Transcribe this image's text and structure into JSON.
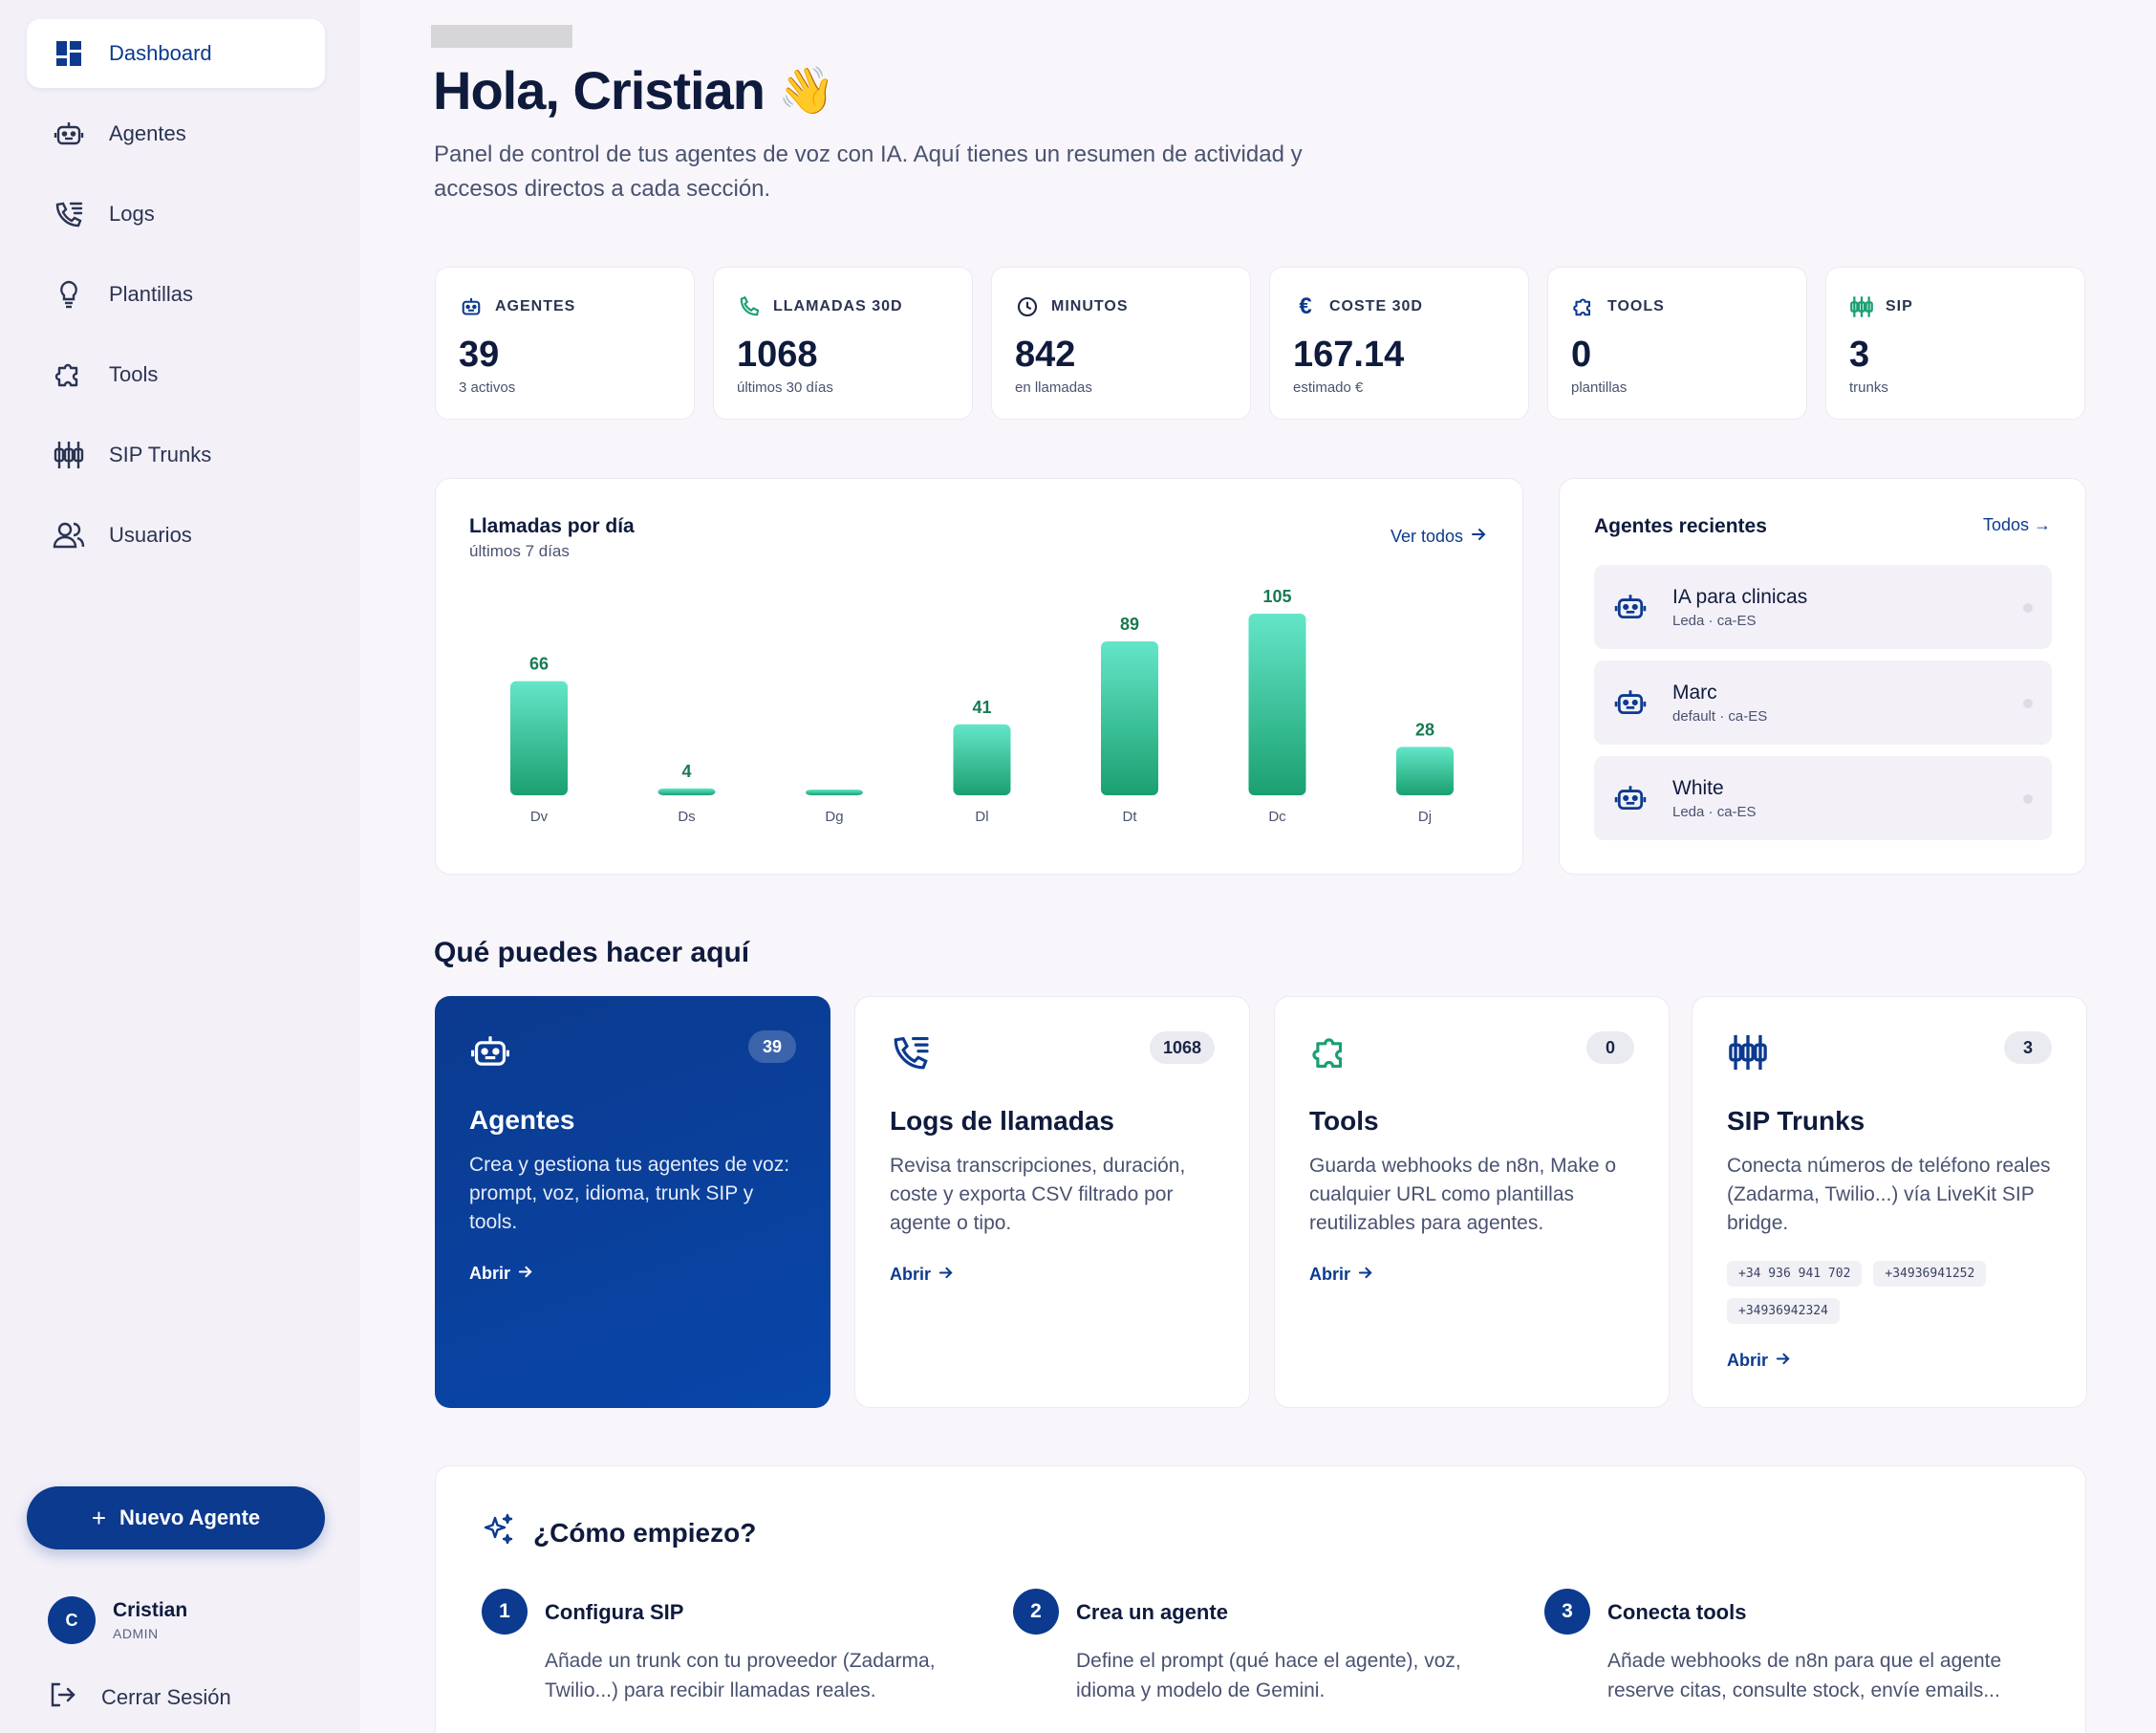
{
  "sidebar": {
    "items": [
      {
        "label": "Dashboard",
        "icon": "dashboard-icon",
        "active": true
      },
      {
        "label": "Agentes",
        "icon": "robot-icon"
      },
      {
        "label": "Logs",
        "icon": "phone-list-icon"
      },
      {
        "label": "Plantillas",
        "icon": "lightbulb-icon"
      },
      {
        "label": "Tools",
        "icon": "puzzle-icon"
      },
      {
        "label": "SIP Trunks",
        "icon": "sip-icon"
      },
      {
        "label": "Usuarios",
        "icon": "users-icon"
      }
    ],
    "new_agent_label": "Nuevo Agente",
    "new_agent_plus": "+",
    "user": {
      "initial": "C",
      "name": "Cristian",
      "role": "ADMIN"
    },
    "logout_label": "Cerrar Sesión"
  },
  "header": {
    "title": "Hola, Cristian",
    "wave": "👋",
    "subtitle": "Panel de control de tus agentes de voz con IA. Aquí tienes un resumen de actividad y accesos directos a cada sección."
  },
  "stats": [
    {
      "label": "AGENTES",
      "value": "39",
      "sub": "3 activos",
      "icon": "robot-icon"
    },
    {
      "label": "LLAMADAS 30D",
      "value": "1068",
      "sub": "últimos 30 días",
      "icon": "phone-icon"
    },
    {
      "label": "MINUTOS",
      "value": "842",
      "sub": "en llamadas",
      "icon": "clock-icon"
    },
    {
      "label": "COSTE 30D",
      "value": "167.14",
      "sub": "estimado €",
      "icon": "euro-icon"
    },
    {
      "label": "TOOLS",
      "value": "0",
      "sub": "plantillas",
      "icon": "puzzle-icon"
    },
    {
      "label": "SIP",
      "value": "3",
      "sub": "trunks",
      "icon": "sip-icon"
    }
  ],
  "chart": {
    "title": "Llamadas por día",
    "subtitle": "últimos 7 días",
    "link_label": "Ver todos"
  },
  "chart_data": {
    "type": "bar",
    "categories": [
      "Dv",
      "Ds",
      "Dg",
      "Dl",
      "Dt",
      "Dc",
      "Dj"
    ],
    "values": [
      66,
      4,
      0,
      41,
      89,
      105,
      28
    ],
    "data_labels": [
      "66",
      "4",
      "",
      "41",
      "89",
      "105",
      "28"
    ],
    "colors": {
      "top": "#63e6c8",
      "bottom": "#1aa070",
      "label": "#177a52"
    },
    "grid": false
  },
  "recent": {
    "title": "Agentes recientes",
    "link_label": "Todos →",
    "agents": [
      {
        "name": "IA para clinicas",
        "meta": "Leda · ca-ES"
      },
      {
        "name": "Marc",
        "meta": "default · ca-ES"
      },
      {
        "name": "White",
        "meta": "Leda · ca-ES"
      }
    ]
  },
  "section_title": "Qué puedes hacer aquí",
  "features": [
    {
      "title": "Agentes",
      "badge": "39",
      "desc": "Crea y gestiona tus agentes de voz: prompt, voz, idioma, trunk SIP y tools.",
      "link": "Abrir",
      "icon": "robot-icon"
    },
    {
      "title": "Logs de llamadas",
      "badge": "1068",
      "desc": "Revisa transcripciones, duración, coste y exporta CSV filtrado por agente o tipo.",
      "link": "Abrir",
      "icon": "phone-list-icon"
    },
    {
      "title": "Tools",
      "badge": "0",
      "desc": "Guarda webhooks de n8n, Make o cualquier URL como plantillas reutilizables para agentes.",
      "link": "Abrir",
      "icon": "puzzle-icon"
    },
    {
      "title": "SIP Trunks",
      "badge": "3",
      "desc": "Conecta números de teléfono reales (Zadarma, Twilio...) vía LiveKit SIP bridge.",
      "link": "Abrir",
      "icon": "sip-icon",
      "chips": [
        "+34 936 941 702",
        "+34936941252",
        "+34936942324"
      ]
    }
  ],
  "start": {
    "title": "¿Cómo empiezo?",
    "steps": [
      {
        "num": "1",
        "title": "Configura SIP",
        "desc": "Añade un trunk con tu proveedor (Zadarma, Twilio...) para recibir llamadas reales."
      },
      {
        "num": "2",
        "title": "Crea un agente",
        "desc": "Define el prompt (qué hace el agente), voz, idioma y modelo de Gemini."
      },
      {
        "num": "3",
        "title": "Conecta tools",
        "desc": "Añade webhooks de n8n para que el agente reserve citas, consulte stock, envíe emails..."
      }
    ]
  },
  "colors": {
    "brand": "#0b3a8f",
    "accent_green": "#1aa070"
  }
}
